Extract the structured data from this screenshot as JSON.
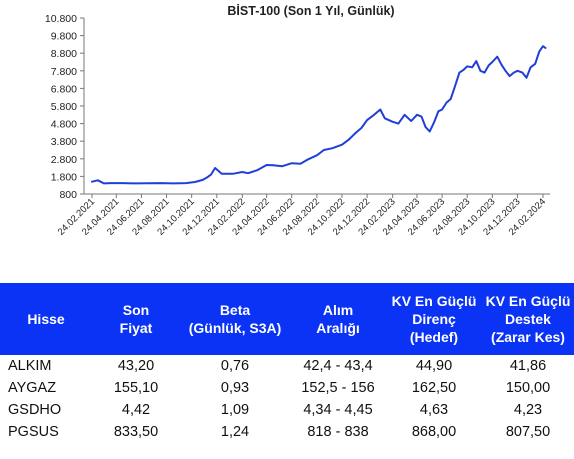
{
  "chart_data": {
    "type": "line",
    "title": "BİST-100 (Son 1 Yıl, Günlük)",
    "y_ticks": [
      "800",
      "1.800",
      "2.800",
      "3.800",
      "4.800",
      "5.800",
      "6.800",
      "7.800",
      "8.800",
      "9.800",
      "10.800"
    ],
    "ylim": [
      800,
      10800
    ],
    "x_ticks": [
      "24.02.2021",
      "24.04.2021",
      "24.06.2021",
      "24.08.2021",
      "24.10.2021",
      "24.12.2021",
      "24.02.2022",
      "24.04.2022",
      "24.06.2022",
      "24.08.2022",
      "24.10.2022",
      "24.12.2022",
      "24.02.2023",
      "24.04.2023",
      "24.06.2023",
      "24.08.2023",
      "24.10.2023",
      "24.12.2023",
      "24.02.2024"
    ],
    "xlim": [
      "2021-02-24",
      "2024-03-01"
    ],
    "series": [
      {
        "color": "#1f3fd6",
        "x": [
          "2021-02-24",
          "2021-03-10",
          "2021-03-25",
          "2021-04-10",
          "2021-05-10",
          "2021-06-10",
          "2021-07-10",
          "2021-08-10",
          "2021-09-10",
          "2021-10-10",
          "2021-11-01",
          "2021-11-20",
          "2021-12-01",
          "2021-12-10",
          "2021-12-20",
          "2022-01-05",
          "2022-02-01",
          "2022-02-24",
          "2022-03-10",
          "2022-04-01",
          "2022-04-24",
          "2022-05-10",
          "2022-06-01",
          "2022-06-24",
          "2022-07-15",
          "2022-08-01",
          "2022-08-24",
          "2022-09-10",
          "2022-10-01",
          "2022-10-24",
          "2022-11-10",
          "2022-11-25",
          "2022-12-10",
          "2022-12-24",
          "2023-01-10",
          "2023-01-25",
          "2023-02-05",
          "2023-02-24",
          "2023-03-10",
          "2023-03-25",
          "2023-04-10",
          "2023-04-24",
          "2023-05-05",
          "2023-05-15",
          "2023-05-25",
          "2023-06-05",
          "2023-06-15",
          "2023-06-24",
          "2023-07-05",
          "2023-07-15",
          "2023-07-25",
          "2023-08-05",
          "2023-08-15",
          "2023-08-24",
          "2023-09-05",
          "2023-09-15",
          "2023-09-25",
          "2023-10-05",
          "2023-10-15",
          "2023-10-24",
          "2023-11-05",
          "2023-11-15",
          "2023-11-25",
          "2023-12-05",
          "2023-12-15",
          "2023-12-24",
          "2024-01-05",
          "2024-01-15",
          "2024-01-25",
          "2024-02-05",
          "2024-02-15",
          "2024-02-24",
          "2024-03-01"
        ],
        "values": [
          1500,
          1580,
          1400,
          1420,
          1420,
          1400,
          1410,
          1420,
          1400,
          1420,
          1480,
          1600,
          1750,
          1900,
          2280,
          1950,
          1950,
          2050,
          1980,
          2150,
          2450,
          2430,
          2380,
          2550,
          2520,
          2750,
          3000,
          3300,
          3400,
          3600,
          3900,
          4250,
          4550,
          5000,
          5300,
          5600,
          5100,
          4900,
          4800,
          5300,
          4950,
          5300,
          5200,
          4600,
          4350,
          4900,
          5500,
          5600,
          6000,
          6200,
          6900,
          7700,
          7850,
          8050,
          8000,
          8350,
          7800,
          7700,
          8100,
          8300,
          8600,
          8150,
          7800,
          7500,
          7700,
          7800,
          7700,
          7400,
          8000,
          8200,
          8900,
          9200,
          9100
        ]
      }
    ]
  },
  "table": {
    "headers": [
      [
        "Hisse"
      ],
      [
        "Son",
        "Fiyat"
      ],
      [
        "Beta",
        "(Günlük, S3A)"
      ],
      [
        "Alım",
        "Aralığı"
      ],
      [
        "KV En Güçlü",
        "Direnç",
        "(Hedef)"
      ],
      [
        "KV En Güçlü",
        "Destek",
        "(Zarar Kes)"
      ]
    ],
    "rows": [
      [
        "ALKIM",
        "43,20",
        "0,76",
        "42,4 - 43,4",
        "44,90",
        "41,86"
      ],
      [
        "AYGAZ",
        "155,10",
        "0,93",
        "152,5 - 156",
        "162,50",
        "150,00"
      ],
      [
        "GSDHO",
        "4,42",
        "1,09",
        "4,34 - 4,45",
        "4,63",
        "4,23"
      ],
      [
        "PGSUS",
        "833,50",
        "1,24",
        "818 - 838",
        "868,00",
        "807,50"
      ]
    ],
    "header_bg": "#0a33f5",
    "header_text_color": "#ffffff"
  }
}
